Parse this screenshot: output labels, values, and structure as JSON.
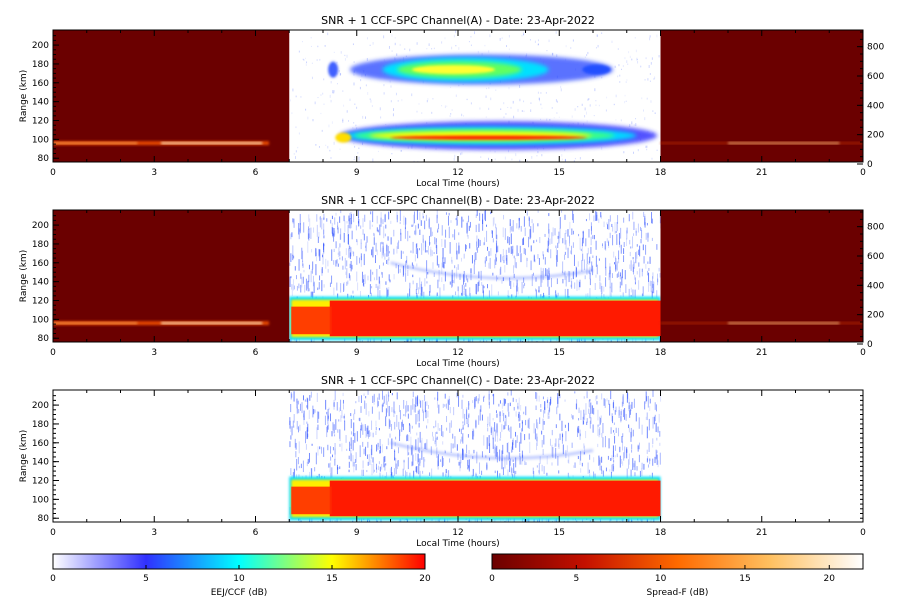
{
  "chart_data": [
    {
      "type": "heatmap",
      "title": "SNR + 1 CCF-SPC Channel(A) - Date: 23-Apr-2022",
      "xlabel": "Local Time (hours)",
      "ylabel": "Range (km)",
      "xlim": [
        0,
        24
      ],
      "ylim": [
        76,
        216
      ],
      "xticks": [
        "0",
        "3",
        "6",
        "9",
        "12",
        "15",
        "18",
        "21",
        "0"
      ],
      "yticks": [
        "80",
        "100",
        "120",
        "140",
        "160",
        "180",
        "200"
      ],
      "y2lim": [
        0,
        900
      ],
      "y2ticks": [
        "0",
        "200",
        "400",
        "600",
        "800"
      ],
      "night_window": {
        "before_hour": 7,
        "after_hour": 18
      },
      "features": [
        {
          "label": "EEJ layer",
          "x_start": 8.5,
          "x_end": 17.9,
          "y_low": 92,
          "y_high": 116
        },
        {
          "label": "150 km echo",
          "x_start": 8.3,
          "x_end": 16.5,
          "y_low": 158,
          "y_high": 190
        },
        {
          "label": "night spread-F",
          "x_start": 0,
          "x_end": 6.4,
          "y_low": 94,
          "y_high": 98
        }
      ]
    },
    {
      "type": "heatmap",
      "title": "SNR + 1 CCF-SPC Channel(B) - Date: 23-Apr-2022",
      "xlabel": "Local Time (hours)",
      "ylabel": "Range (km)",
      "xlim": [
        0,
        24
      ],
      "ylim": [
        76,
        216
      ],
      "xticks": [
        "0",
        "3",
        "6",
        "9",
        "12",
        "15",
        "18",
        "21",
        "0"
      ],
      "yticks": [
        "80",
        "100",
        "120",
        "140",
        "160",
        "180",
        "200"
      ],
      "y2lim": [
        0,
        900
      ],
      "y2ticks": [
        "0",
        "200",
        "400",
        "600",
        "800"
      ],
      "night_window": {
        "before_hour": 7,
        "after_hour": 18
      },
      "features": [
        {
          "label": "EEJ layer",
          "x_start": 7.0,
          "x_end": 18.0,
          "y_low": 80,
          "y_high": 122
        },
        {
          "label": "night spread-F",
          "x_start": 0,
          "x_end": 6.4,
          "y_low": 94,
          "y_high": 98
        }
      ]
    },
    {
      "type": "heatmap",
      "title": "SNR + 1 CCF-SPC Channel(C) - Date: 23-Apr-2022",
      "xlabel": "Local Time (hours)",
      "ylabel": "Range (km)",
      "xlim": [
        0,
        24
      ],
      "ylim": [
        76,
        216
      ],
      "xticks": [
        "0",
        "3",
        "6",
        "9",
        "12",
        "15",
        "18",
        "21",
        "0"
      ],
      "yticks": [
        "80",
        "100",
        "120",
        "140",
        "160",
        "180",
        "200"
      ],
      "night_window": null,
      "features": [
        {
          "label": "EEJ layer",
          "x_start": 7.0,
          "x_end": 18.0,
          "y_low": 80,
          "y_high": 122
        }
      ]
    }
  ],
  "colorbars": [
    {
      "label": "EEJ/CCF (dB)",
      "range": [
        0,
        20
      ],
      "ticks": [
        "0",
        "5",
        "10",
        "15",
        "20"
      ],
      "colors": [
        "#ffffff",
        "#3030ff",
        "#00ffff",
        "#ffff00",
        "#ff0000"
      ]
    },
    {
      "label": "Spread-F (dB)",
      "range": [
        0,
        22
      ],
      "ticks": [
        "0",
        "5",
        "10",
        "15",
        "20"
      ],
      "colors": [
        "#6b0000",
        "#c41000",
        "#ff6a00",
        "#ffc060",
        "#ffffff"
      ]
    }
  ]
}
